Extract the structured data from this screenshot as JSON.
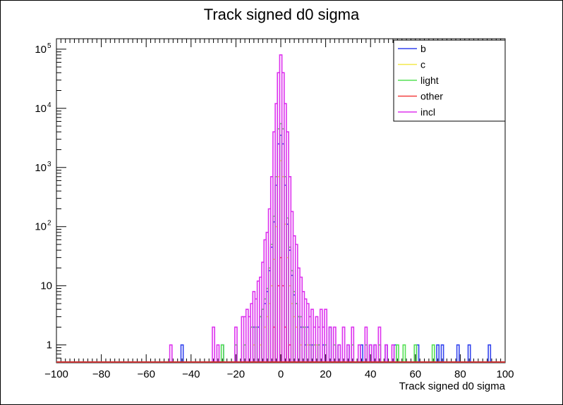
{
  "chart_data": {
    "type": "line",
    "title": "Track signed d0 sigma",
    "xlabel": "Track signed d0 sigma",
    "ylabel": "",
    "xlim": [
      -100,
      100
    ],
    "ylim": [
      0.5,
      150000
    ],
    "yscale": "log",
    "x_ticks": [
      "−100",
      "−80",
      "−60",
      "−40",
      "−20",
      "0",
      "20",
      "40",
      "60",
      "80",
      "100"
    ],
    "y_ticks": [
      {
        "value": 1,
        "label": "1"
      },
      {
        "value": 10,
        "label": "10"
      },
      {
        "value": 100,
        "label": "10",
        "sup": "2"
      },
      {
        "value": 1000,
        "label": "10",
        "sup": "3"
      },
      {
        "value": 10000,
        "label": "10",
        "sup": "4"
      },
      {
        "value": 100000,
        "label": "10",
        "sup": "5"
      }
    ],
    "legend_position": "top-right",
    "series": [
      {
        "name": "b",
        "color": "#3344ee",
        "x": [
          -44,
          -26,
          -12,
          -10,
          -9,
          -8,
          -7,
          -6,
          -5,
          -4,
          -3,
          -2,
          -1,
          0,
          1,
          2,
          3,
          4,
          5,
          6,
          7,
          8,
          9,
          10,
          11,
          12,
          14,
          17,
          19,
          22,
          26,
          30,
          36,
          40,
          42,
          47,
          51,
          61,
          70,
          72,
          79,
          84,
          93
        ],
        "values": [
          1,
          1,
          2,
          2,
          3,
          4,
          5,
          8,
          18,
          45,
          120,
          500,
          2500,
          3500,
          2500,
          500,
          110,
          40,
          15,
          7,
          5,
          3,
          2,
          2,
          1,
          2,
          1,
          1,
          1,
          2,
          1,
          1,
          1,
          1,
          1,
          1,
          1,
          1,
          1,
          1,
          1,
          1,
          1
        ]
      },
      {
        "name": "c",
        "color": "#f2e84a",
        "x": [
          -12,
          -9,
          -7,
          -6,
          -5,
          -4,
          -3,
          -2,
          -1,
          0,
          1,
          2,
          3,
          4,
          5,
          6,
          7,
          9,
          12,
          16
        ],
        "values": [
          1,
          1,
          2,
          3,
          5,
          10,
          28,
          100,
          700,
          1300,
          700,
          110,
          30,
          10,
          5,
          3,
          2,
          1,
          1,
          1
        ]
      },
      {
        "name": "light",
        "color": "#55e055",
        "x": [
          -26,
          -20,
          -16,
          -13,
          -11,
          -9,
          -8,
          -7,
          -6,
          -5,
          -4,
          -3,
          -2,
          -1,
          0,
          1,
          2,
          3,
          4,
          5,
          6,
          7,
          8,
          9,
          10,
          11,
          13,
          15,
          17,
          20,
          24,
          32,
          38,
          44,
          52,
          55,
          60,
          68
        ],
        "values": [
          1,
          1,
          1,
          2,
          2,
          3,
          4,
          6,
          9,
          20,
          50,
          150,
          700,
          4500,
          5500,
          4500,
          700,
          140,
          45,
          18,
          8,
          5,
          3,
          3,
          2,
          2,
          1,
          1,
          1,
          1,
          1,
          1,
          1,
          1,
          1,
          1,
          1,
          1
        ]
      },
      {
        "name": "other",
        "color": "#f24040",
        "x": [
          -3,
          -1,
          0,
          1,
          2,
          4
        ],
        "values": [
          2,
          10,
          30,
          10,
          2,
          1
        ]
      },
      {
        "name": "incl",
        "color": "#dd33ee",
        "x": [
          -49,
          -30,
          -28,
          -20,
          -17,
          -16,
          -15,
          -14,
          -13,
          -12,
          -11,
          -10,
          -9,
          -8,
          -7,
          -6,
          -5,
          -4,
          -3,
          -2,
          -1,
          0,
          1,
          2,
          3,
          4,
          5,
          6,
          7,
          8,
          9,
          10,
          11,
          12,
          13,
          14,
          15,
          16,
          17,
          18,
          19,
          20,
          22,
          24,
          26,
          28,
          30,
          32,
          35,
          38,
          40,
          42,
          44,
          47,
          50
        ],
        "values": [
          1,
          2,
          1,
          2,
          3,
          3,
          4,
          3,
          5,
          8,
          6,
          12,
          14,
          25,
          60,
          80,
          200,
          700,
          4000,
          12000,
          40000,
          80000,
          40000,
          12000,
          4000,
          700,
          180,
          70,
          50,
          20,
          14,
          8,
          6,
          5,
          3,
          4,
          2,
          3,
          2,
          4,
          2,
          4,
          2,
          2,
          1,
          2,
          1,
          2,
          1,
          2,
          1,
          1,
          2,
          1,
          1
        ]
      }
    ]
  }
}
